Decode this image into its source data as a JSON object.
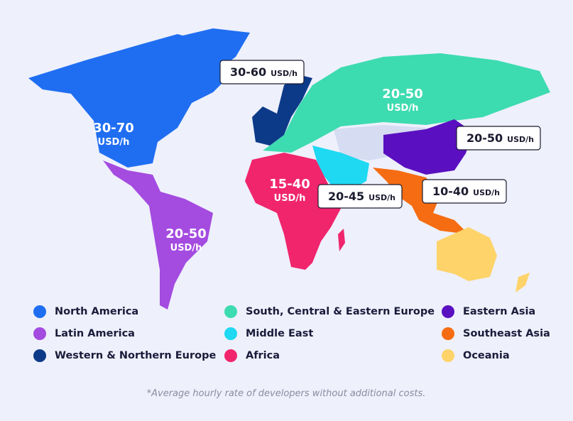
{
  "regions": [
    {
      "name": "North America",
      "color": "#1f6ef2",
      "rate": "30-70",
      "unit": "USD/h"
    },
    {
      "name": "Latin America",
      "color": "#a44be0",
      "rate": "20-50",
      "unit": "USD/h"
    },
    {
      "name": "Western & Northern Europe",
      "color": "#0c3a88",
      "rate": "30-60",
      "unit": "USD/h"
    },
    {
      "name": "South, Central & Eastern Europe",
      "color": "#3ddbb0",
      "rate": "20-50",
      "unit": "USD/h"
    },
    {
      "name": "Middle East",
      "color": "#1fd8f2",
      "rate": "20-45",
      "unit": "USD/h"
    },
    {
      "name": "Africa",
      "color": "#f0256c",
      "rate": "15-40",
      "unit": "USD/h"
    },
    {
      "name": "Eastern Asia",
      "color": "#5a10c0",
      "rate": "20-50",
      "unit": "USD/h"
    },
    {
      "name": "Southeast Asia",
      "color": "#f56c12",
      "rate": "10-40",
      "unit": "USD/h"
    },
    {
      "name": "Oceania",
      "color": "#fdd36a"
    }
  ],
  "footnote": "*Average hourly rate of developers without additional costs."
}
